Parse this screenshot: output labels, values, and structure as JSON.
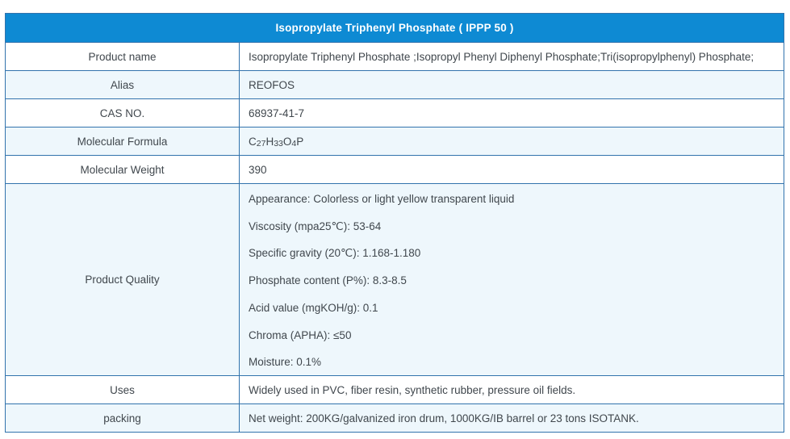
{
  "table": {
    "title": "Isopropylate Triphenyl Phosphate ( IPPP 50 )",
    "colors": {
      "header_bg": "#0e8ad3",
      "header_text": "#ffffff",
      "border": "#3273ad",
      "alt_row_bg": "#eef7fc",
      "body_text": "#40474d"
    },
    "rows": [
      {
        "label": "Product name",
        "value": "Isopropylate Triphenyl Phosphate ;Isopropyl Phenyl Diphenyl Phosphate;Tri(isopropylphenyl) Phosphate;"
      },
      {
        "label": "Alias",
        "value": "REOFOS"
      },
      {
        "label": "CAS NO.",
        "value": "68937-41-7"
      },
      {
        "label": "Molecular Formula",
        "formula": {
          "b0": "C",
          "s0": "27",
          "b1": "H",
          "s1": "33",
          "b2": "O",
          "s2": "4",
          "b3": "P"
        }
      },
      {
        "label": "Molecular Weight",
        "value": "390"
      },
      {
        "label": "Product Quality",
        "lines": [
          "Appearance: Colorless or light yellow transparent liquid",
          "Viscosity (mpa25℃): 53-64",
          "Specific gravity (20℃): 1.168-1.180",
          "Phosphate content (P%): 8.3-8.5",
          "Acid value (mgKOH/g): 0.1",
          "Chroma (APHA): ≤50",
          "Moisture: 0.1%"
        ]
      },
      {
        "label": "Uses",
        "value": "Widely used in PVC, fiber resin, synthetic rubber, pressure oil fields."
      },
      {
        "label": "packing",
        "value": "Net weight: 200KG/galvanized iron drum, 1000KG/IB barrel or 23 tons ISOTANK."
      }
    ]
  }
}
